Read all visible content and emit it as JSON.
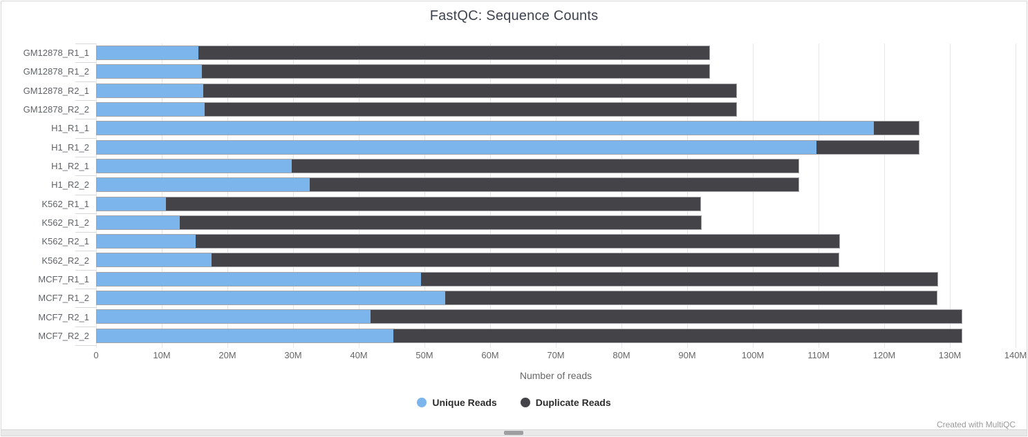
{
  "title": "FastQC: Sequence Counts",
  "credit": "Created with MultiQC",
  "colors": {
    "unique_reads": "#7cb5ec",
    "duplicate_reads": "#434348",
    "gridline": "#e6e6e6",
    "title_text": "#3e4350",
    "axis_text": "#666666"
  },
  "legend": {
    "items": [
      {
        "label": "Unique Reads",
        "color": "#7cb5ec"
      },
      {
        "label": "Duplicate Reads",
        "color": "#434348"
      }
    ]
  },
  "chart_data": {
    "type": "bar",
    "orientation": "horizontal",
    "stacked": true,
    "title": "FastQC: Sequence Counts",
    "xlabel": "Number of reads",
    "ylabel": "",
    "grid": true,
    "legend_position": "bottom",
    "xlim_millions": [
      0,
      140
    ],
    "x_ticks_millions": [
      0,
      10,
      20,
      30,
      40,
      50,
      60,
      70,
      80,
      90,
      100,
      110,
      120,
      130,
      140
    ],
    "x_tick_labels": [
      "0",
      "10M",
      "20M",
      "30M",
      "40M",
      "50M",
      "60M",
      "70M",
      "80M",
      "90M",
      "100M",
      "110M",
      "120M",
      "130M",
      "140M"
    ],
    "categories": [
      "GM12878_R1_1",
      "GM12878_R1_2",
      "GM12878_R2_1",
      "GM12878_R2_2",
      "H1_R1_1",
      "H1_R1_2",
      "H1_R2_1",
      "H1_R2_2",
      "K562_R1_1",
      "K562_R1_2",
      "K562_R2_1",
      "K562_R2_2",
      "MCF7_R1_1",
      "MCF7_R1_2",
      "MCF7_R2_1",
      "MCF7_R2_2"
    ],
    "series": [
      {
        "name": "Unique Reads",
        "color": "#7cb5ec",
        "values_millions": [
          15.5,
          16.0,
          16.2,
          16.5,
          118.5,
          109.8,
          29.7,
          32.5,
          10.6,
          12.7,
          15.1,
          17.5,
          49.4,
          53.1,
          41.7,
          45.2
        ]
      },
      {
        "name": "Duplicate Reads",
        "color": "#434348",
        "values_millions": [
          78.0,
          77.5,
          81.4,
          81.1,
          6.9,
          15.6,
          77.4,
          74.6,
          81.5,
          79.5,
          98.2,
          95.7,
          78.8,
          75.0,
          90.2,
          86.7
        ]
      }
    ]
  }
}
